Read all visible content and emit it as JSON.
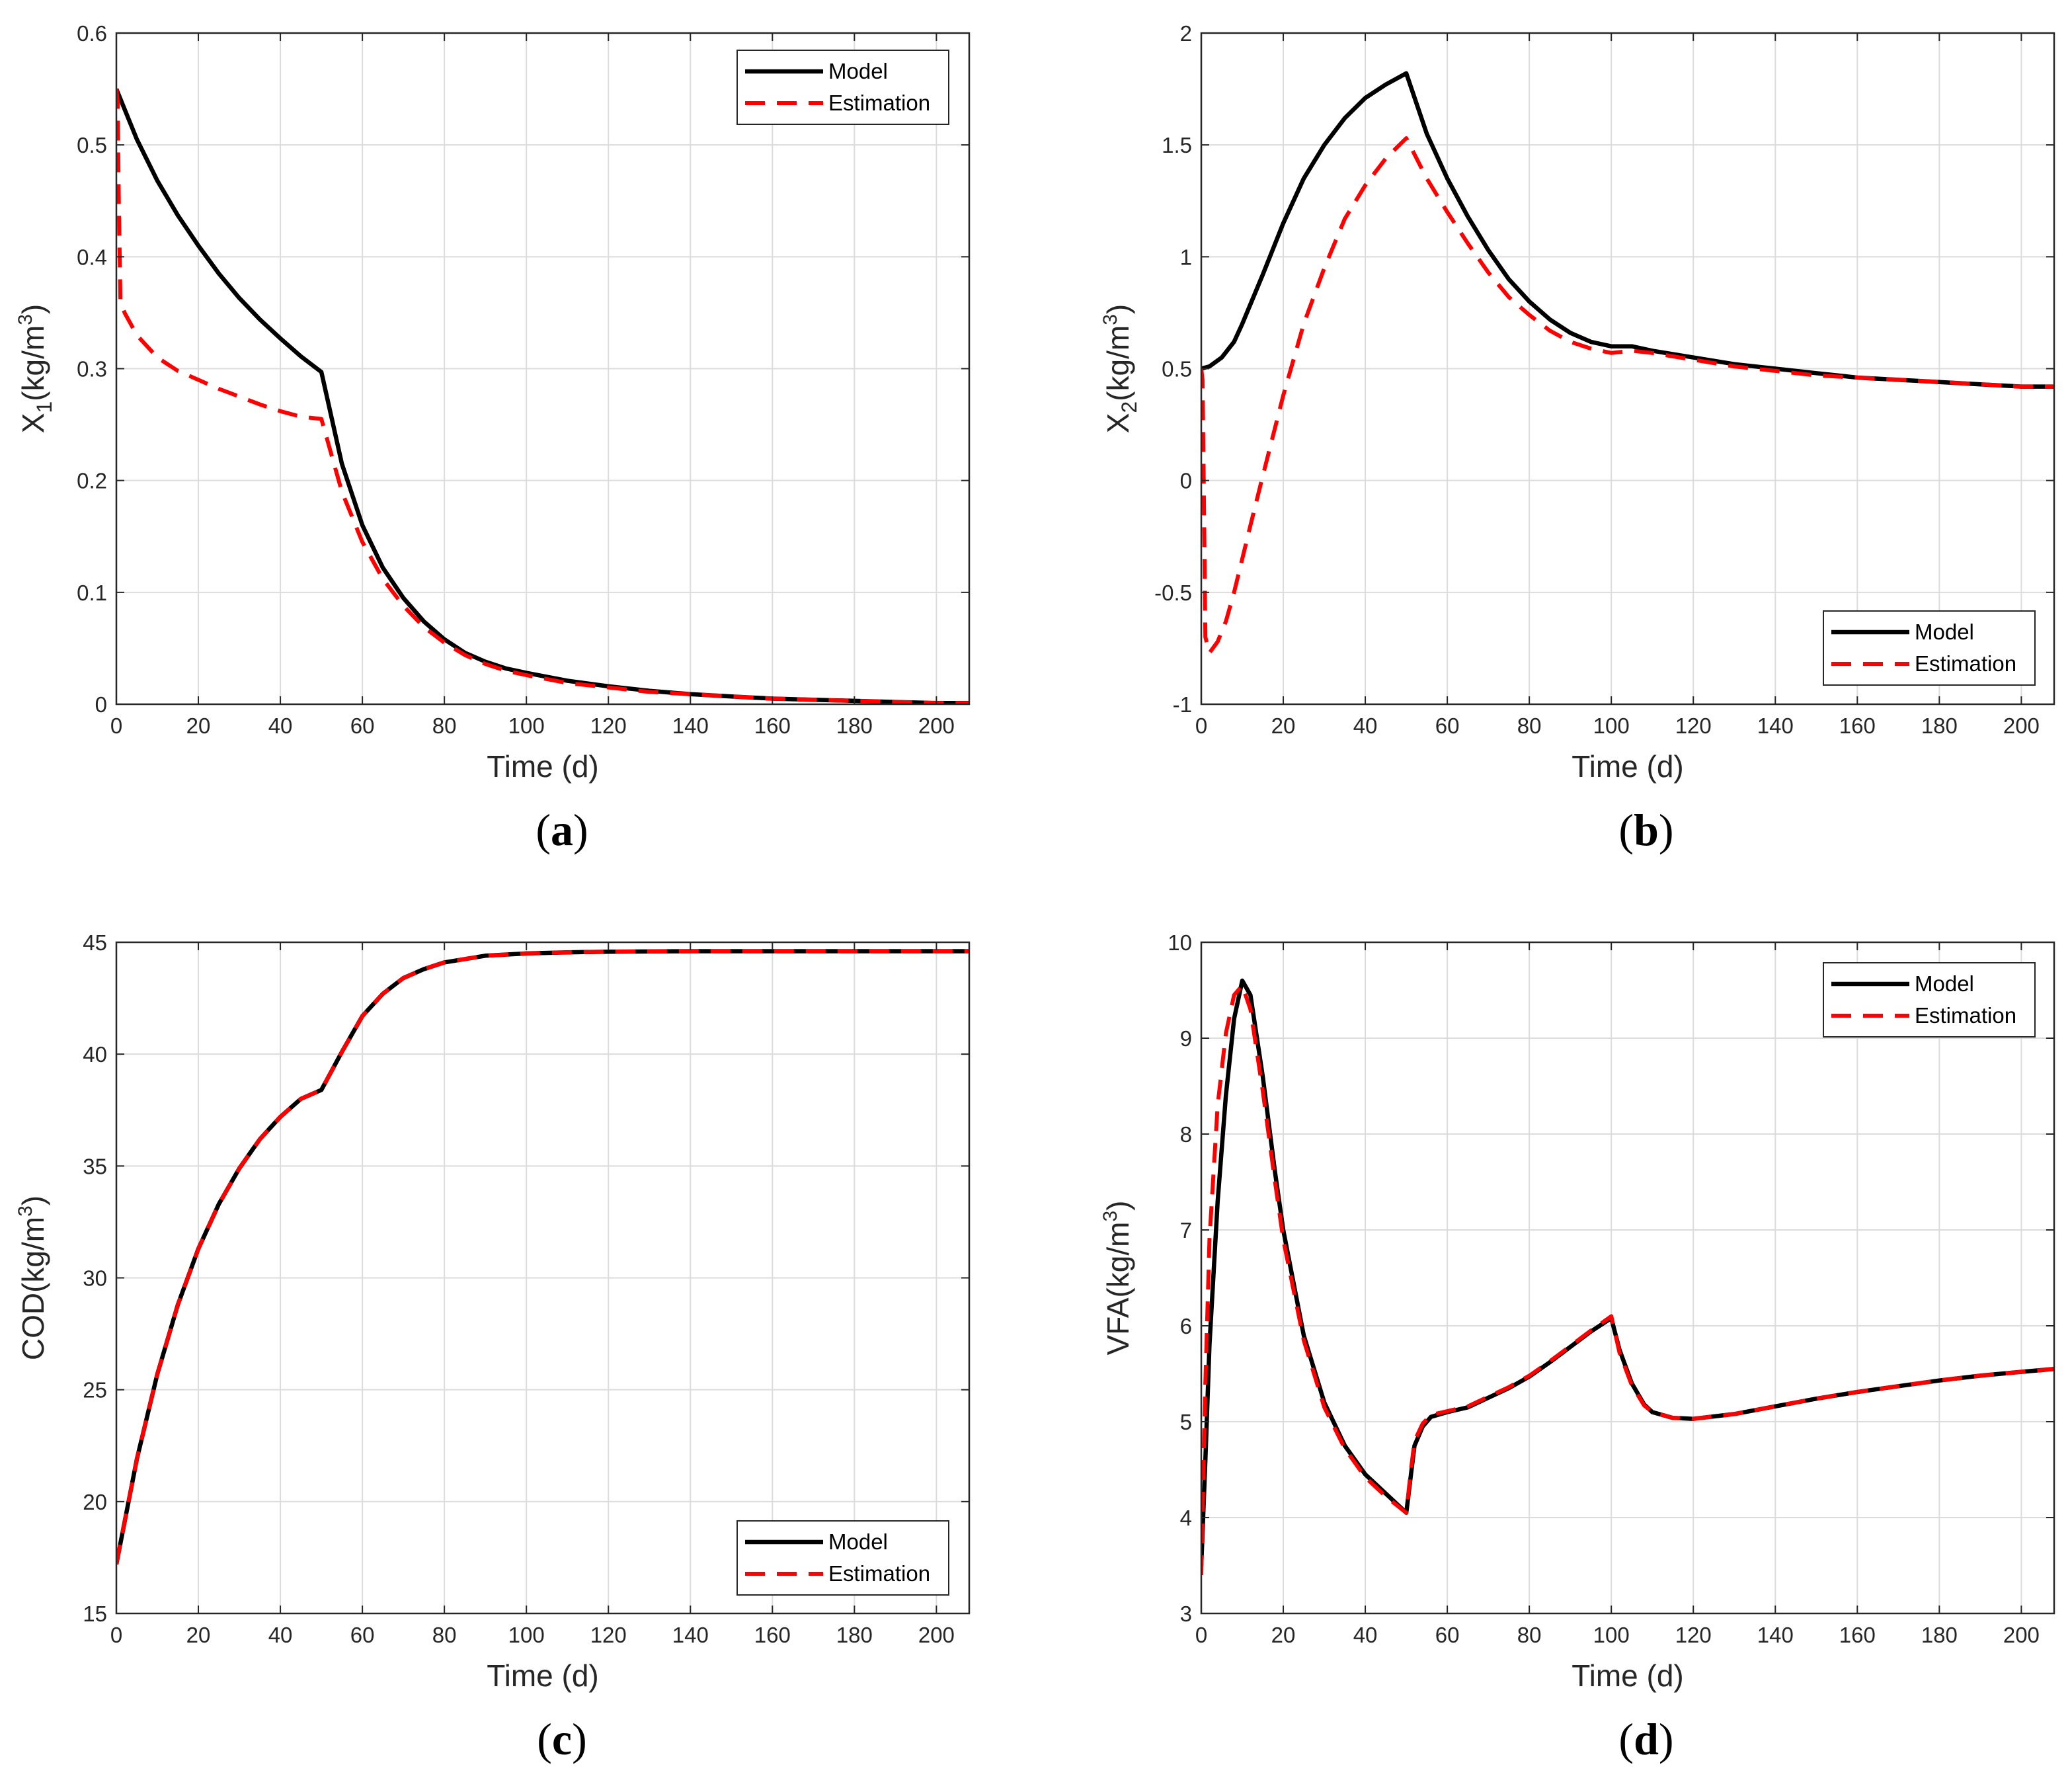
{
  "colors": {
    "model": "#000000",
    "estimation": "#ff0000",
    "grid": "#dcdcdc",
    "axis": "#262626"
  },
  "chart_data": [
    {
      "type": "line",
      "caption": "a",
      "xlabel": "Time (d)",
      "ylabel": "X",
      "ylabel_sub": "1",
      "ylabel_unit": "(kg/m",
      "ylabel_sup": "3",
      "ylabel_close": ")",
      "xlim": [
        0,
        208
      ],
      "ylim": [
        0,
        0.6
      ],
      "xticks": [
        0,
        20,
        40,
        60,
        80,
        100,
        120,
        140,
        160,
        180,
        200
      ],
      "yticks": [
        0,
        0.1,
        0.2,
        0.3,
        0.4,
        0.5,
        0.6
      ],
      "ytick_labels": [
        "0",
        "0.1",
        "0.2",
        "0.3",
        "0.4",
        "0.5",
        "0.6"
      ],
      "grid": true,
      "legend_loc": "top-right",
      "series": [
        {
          "name": "Model",
          "style": "solid",
          "x": [
            0,
            5,
            10,
            15,
            20,
            25,
            30,
            35,
            40,
            45,
            50,
            55,
            60,
            65,
            70,
            75,
            80,
            85,
            90,
            95,
            100,
            110,
            120,
            130,
            140,
            150,
            160,
            170,
            180,
            190,
            200,
            208
          ],
          "y": [
            0.55,
            0.505,
            0.468,
            0.437,
            0.41,
            0.385,
            0.363,
            0.344,
            0.327,
            0.311,
            0.297,
            0.215,
            0.16,
            0.122,
            0.095,
            0.074,
            0.058,
            0.046,
            0.038,
            0.032,
            0.028,
            0.021,
            0.016,
            0.012,
            0.009,
            0.007,
            0.005,
            0.004,
            0.003,
            0.002,
            0.001,
            0.001
          ]
        },
        {
          "name": "Estimation",
          "style": "dashed",
          "x": [
            0,
            0.3,
            0.6,
            1,
            2,
            5,
            10,
            15,
            20,
            25,
            30,
            35,
            40,
            45,
            50,
            55,
            60,
            65,
            70,
            75,
            80,
            85,
            90,
            95,
            100,
            110,
            120,
            130,
            140,
            150,
            160,
            170,
            180,
            190,
            200,
            208
          ],
          "y": [
            0.55,
            0.54,
            0.45,
            0.36,
            0.35,
            0.33,
            0.31,
            0.298,
            0.29,
            0.282,
            0.275,
            0.268,
            0.262,
            0.257,
            0.255,
            0.19,
            0.145,
            0.112,
            0.088,
            0.069,
            0.055,
            0.044,
            0.036,
            0.03,
            0.026,
            0.019,
            0.015,
            0.011,
            0.009,
            0.007,
            0.005,
            0.004,
            0.003,
            0.002,
            0.001,
            0.001
          ]
        }
      ]
    },
    {
      "type": "line",
      "caption": "b",
      "xlabel": "Time (d)",
      "ylabel": "X",
      "ylabel_sub": "2",
      "ylabel_unit": "(kg/m",
      "ylabel_sup": "3",
      "ylabel_close": ")",
      "xlim": [
        0,
        208
      ],
      "ylim": [
        -1,
        2
      ],
      "xticks": [
        0,
        20,
        40,
        60,
        80,
        100,
        120,
        140,
        160,
        180,
        200
      ],
      "yticks": [
        -1,
        -0.5,
        0,
        0.5,
        1,
        1.5,
        2
      ],
      "ytick_labels": [
        "-1",
        "-0.5",
        "0",
        "0.5",
        "1",
        "1.5",
        "2"
      ],
      "grid": true,
      "legend_loc": "bottom-right",
      "series": [
        {
          "name": "Model",
          "style": "solid",
          "x": [
            0,
            2,
            5,
            8,
            10,
            15,
            20,
            25,
            30,
            35,
            40,
            45,
            50,
            55,
            60,
            65,
            70,
            75,
            80,
            85,
            90,
            95,
            100,
            105,
            110,
            120,
            130,
            140,
            150,
            160,
            170,
            180,
            190,
            200,
            208
          ],
          "y": [
            0.5,
            0.51,
            0.55,
            0.62,
            0.7,
            0.92,
            1.15,
            1.35,
            1.5,
            1.62,
            1.71,
            1.77,
            1.82,
            1.55,
            1.35,
            1.18,
            1.03,
            0.9,
            0.8,
            0.72,
            0.66,
            0.62,
            0.6,
            0.6,
            0.58,
            0.55,
            0.52,
            0.5,
            0.48,
            0.46,
            0.45,
            0.44,
            0.43,
            0.42,
            0.42
          ]
        },
        {
          "name": "Estimation",
          "style": "dashed",
          "x": [
            0,
            0.3,
            0.6,
            1,
            2,
            4,
            6,
            8,
            10,
            12,
            15,
            20,
            25,
            30,
            35,
            40,
            45,
            50,
            55,
            60,
            65,
            70,
            75,
            80,
            85,
            90,
            95,
            100,
            105,
            110,
            120,
            130,
            140,
            150,
            160,
            170,
            180,
            190,
            200,
            208
          ],
          "y": [
            0.5,
            0.45,
            0.0,
            -0.7,
            -0.77,
            -0.72,
            -0.63,
            -0.5,
            -0.35,
            -0.2,
            0.02,
            0.38,
            0.7,
            0.95,
            1.17,
            1.32,
            1.44,
            1.53,
            1.35,
            1.2,
            1.06,
            0.93,
            0.82,
            0.74,
            0.67,
            0.62,
            0.59,
            0.57,
            0.58,
            0.57,
            0.54,
            0.51,
            0.49,
            0.47,
            0.46,
            0.45,
            0.44,
            0.43,
            0.42,
            0.42
          ]
        }
      ]
    },
    {
      "type": "line",
      "caption": "c",
      "xlabel": "Time (d)",
      "ylabel": "COD",
      "ylabel_sub": "",
      "ylabel_unit": "(kg/m",
      "ylabel_sup": "3",
      "ylabel_close": ")",
      "xlim": [
        0,
        208
      ],
      "ylim": [
        15,
        45
      ],
      "xticks": [
        0,
        20,
        40,
        60,
        80,
        100,
        120,
        140,
        160,
        180,
        200
      ],
      "yticks": [
        15,
        20,
        25,
        30,
        35,
        40,
        45
      ],
      "ytick_labels": [
        "15",
        "20",
        "25",
        "30",
        "35",
        "40",
        "45"
      ],
      "grid": true,
      "legend_loc": "bottom-right",
      "series": [
        {
          "name": "Model",
          "style": "solid",
          "x": [
            0,
            5,
            10,
            15,
            20,
            25,
            30,
            35,
            40,
            45,
            50,
            55,
            60,
            65,
            70,
            75,
            80,
            90,
            100,
            110,
            120,
            140,
            160,
            180,
            200,
            208
          ],
          "y": [
            17.2,
            21.9,
            25.7,
            28.8,
            31.3,
            33.3,
            34.9,
            36.2,
            37.2,
            38.0,
            38.4,
            40.1,
            41.7,
            42.7,
            43.4,
            43.8,
            44.1,
            44.4,
            44.5,
            44.55,
            44.58,
            44.6,
            44.6,
            44.6,
            44.6,
            44.6
          ]
        },
        {
          "name": "Estimation",
          "style": "dashed",
          "x": [
            0,
            5,
            10,
            15,
            20,
            25,
            30,
            35,
            40,
            45,
            50,
            55,
            60,
            65,
            70,
            75,
            80,
            90,
            100,
            110,
            120,
            140,
            160,
            180,
            200,
            208
          ],
          "y": [
            17.2,
            21.9,
            25.7,
            28.8,
            31.3,
            33.3,
            34.9,
            36.2,
            37.2,
            38.0,
            38.4,
            40.1,
            41.7,
            42.7,
            43.4,
            43.8,
            44.1,
            44.4,
            44.5,
            44.55,
            44.58,
            44.6,
            44.6,
            44.6,
            44.6,
            44.6
          ]
        }
      ]
    },
    {
      "type": "line",
      "caption": "d",
      "xlabel": "Time (d)",
      "ylabel": "VFA",
      "ylabel_sub": "",
      "ylabel_unit": "(kg/m",
      "ylabel_sup": "3",
      "ylabel_close": ")",
      "xlim": [
        0,
        208
      ],
      "ylim": [
        3,
        10
      ],
      "xticks": [
        0,
        20,
        40,
        60,
        80,
        100,
        120,
        140,
        160,
        180,
        200
      ],
      "yticks": [
        3,
        4,
        5,
        6,
        7,
        8,
        9,
        10
      ],
      "ytick_labels": [
        "3",
        "4",
        "5",
        "6",
        "7",
        "8",
        "9",
        "10"
      ],
      "grid": true,
      "legend_loc": "top-right",
      "series": [
        {
          "name": "Model",
          "style": "solid",
          "x": [
            0,
            1,
            2,
            4,
            6,
            8,
            10,
            12,
            15,
            18,
            20,
            25,
            30,
            35,
            40,
            45,
            50,
            51,
            52,
            54,
            56,
            60,
            65,
            70,
            75,
            80,
            85,
            90,
            95,
            100,
            102,
            105,
            108,
            110,
            115,
            120,
            130,
            140,
            150,
            160,
            170,
            180,
            190,
            200,
            208
          ],
          "y": [
            3.5,
            4.6,
            5.8,
            7.3,
            8.4,
            9.2,
            9.6,
            9.45,
            8.6,
            7.6,
            7.0,
            5.9,
            5.2,
            4.75,
            4.45,
            4.25,
            4.05,
            4.4,
            4.75,
            4.95,
            5.05,
            5.1,
            5.15,
            5.25,
            5.35,
            5.47,
            5.62,
            5.78,
            5.94,
            6.08,
            5.75,
            5.4,
            5.18,
            5.1,
            5.04,
            5.03,
            5.08,
            5.16,
            5.24,
            5.31,
            5.37,
            5.43,
            5.48,
            5.52,
            5.55
          ]
        },
        {
          "name": "Estimation",
          "style": "dashed",
          "x": [
            0,
            1,
            2,
            4,
            6,
            8,
            10,
            12,
            15,
            18,
            20,
            25,
            30,
            35,
            40,
            45,
            50,
            51,
            52,
            54,
            56,
            60,
            65,
            70,
            75,
            80,
            85,
            90,
            95,
            100,
            102,
            105,
            108,
            110,
            115,
            120,
            130,
            140,
            150,
            160,
            170,
            180,
            190,
            200,
            208
          ],
          "y": [
            3.4,
            5.4,
            6.9,
            8.3,
            9.05,
            9.45,
            9.55,
            9.3,
            8.45,
            7.5,
            6.9,
            5.85,
            5.15,
            4.72,
            4.42,
            4.22,
            4.05,
            4.45,
            4.8,
            4.98,
            5.07,
            5.11,
            5.16,
            5.26,
            5.36,
            5.48,
            5.63,
            5.79,
            5.95,
            6.1,
            5.72,
            5.38,
            5.17,
            5.1,
            5.04,
            5.03,
            5.08,
            5.16,
            5.24,
            5.31,
            5.37,
            5.43,
            5.48,
            5.52,
            5.55
          ]
        }
      ]
    }
  ]
}
